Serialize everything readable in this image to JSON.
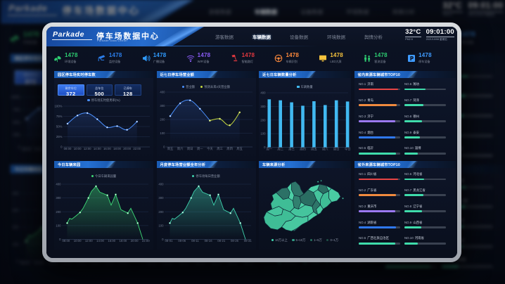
{
  "header": {
    "logo": "Parkade",
    "title": "停车场数据中心",
    "subtitle": "Parkade Data Center",
    "nav": [
      {
        "label": "游客数据",
        "active": false
      },
      {
        "label": "车辆数据",
        "active": true
      },
      {
        "label": "设备数据",
        "active": false
      },
      {
        "label": "环境数据",
        "active": false
      },
      {
        "label": "舆情分析",
        "active": false
      }
    ],
    "temperature": "32°C",
    "temperature_sub": "PM2.5",
    "time": "09:01:00",
    "date": "2021/10/08 星期五"
  },
  "kpis": [
    {
      "icon": "leaf-icon",
      "value": "1478",
      "label": "环境设备",
      "color": "#2ecc71"
    },
    {
      "icon": "camera-icon",
      "value": "1478",
      "label": "监控设备",
      "color": "#2b7de9"
    },
    {
      "icon": "speaker-icon",
      "value": "1478",
      "label": "广播设备",
      "color": "#2f9bff"
    },
    {
      "icon": "wifi-icon",
      "value": "1478",
      "label": "WIFI设备",
      "color": "#8a5cf6"
    },
    {
      "icon": "lamp-icon",
      "value": "1478",
      "label": "智能路灯",
      "color": "#e0383f"
    },
    {
      "icon": "steering-wheel-icon",
      "value": "1478",
      "label": "车辆识别",
      "color": "#ff8a3c"
    },
    {
      "icon": "led-screen-icon",
      "value": "1478",
      "label": "LED大屏",
      "color": "#f5c23d"
    },
    {
      "icon": "people-icon",
      "value": "1478",
      "label": "客流设备",
      "color": "#2ecc71"
    },
    {
      "icon": "parking-icon",
      "value": "1478",
      "label": "停车设备",
      "color": "#3f9bff"
    }
  ],
  "panels": {
    "realtime": {
      "title": "园区停车场实时停车数",
      "stats": [
        {
          "label": "剩余车位",
          "value": "372",
          "hl": true
        },
        {
          "label": "总车位",
          "value": "500",
          "hl": false
        },
        {
          "label": "已停车",
          "value": "128",
          "hl": false
        }
      ]
    },
    "revenue": {
      "title": "近七日停车场营业额"
    },
    "weekly": {
      "title": "近七日车辆数量分析"
    },
    "top_province": {
      "title": "省内来源车辆城市TOP10",
      "items": [
        {
          "rank": "NO.1",
          "name": "济南",
          "pct": 95,
          "color": "#e84545"
        },
        {
          "rank": "NO.2",
          "name": "青岛",
          "pct": 92,
          "color": "#f08a3e"
        },
        {
          "rank": "NO.3",
          "name": "济宁",
          "pct": 88,
          "color": "#9b79f2"
        },
        {
          "rank": "NO.4",
          "name": "烟台",
          "pct": 88,
          "color": "#2f78f0"
        },
        {
          "rank": "NO.5",
          "name": "临沂",
          "pct": 90,
          "color": "#3fdcab"
        },
        {
          "rank": "NO.6",
          "name": "潍坊",
          "pct": 50,
          "color": "#3fdcab"
        },
        {
          "rank": "NO.7",
          "name": "菏泽",
          "pct": 45,
          "color": "#3fdcab"
        },
        {
          "rank": "NO.8",
          "name": "德州",
          "pct": 42,
          "color": "#3fdcab"
        },
        {
          "rank": "NO.9",
          "name": "泰安",
          "pct": 38,
          "color": "#3fdcab"
        },
        {
          "rank": "NO.10",
          "name": "淄博",
          "pct": 32,
          "color": "#3fdcab"
        }
      ]
    },
    "today": {
      "title": "今日车辆来园"
    },
    "monthly": {
      "title": "月度停车场营业额全年分析"
    },
    "map": {
      "title": "车辆来源分析",
      "legend": [
        {
          "label": "10万以上",
          "color": "#3fd6b0"
        },
        {
          "label": "5~10万",
          "color": "#319a85"
        },
        {
          "label": "1~5万",
          "color": "#27705f"
        },
        {
          "label": "0~1万",
          "color": "#1e4f47"
        }
      ]
    },
    "top_outside": {
      "title": "省外来源车辆城市TOP10",
      "items": [
        {
          "rank": "NO.1",
          "name": "四川省",
          "pct": 95,
          "color": "#e84545"
        },
        {
          "rank": "NO.2",
          "name": "广东省",
          "pct": 90,
          "color": "#f08a3e"
        },
        {
          "rank": "NO.3",
          "name": "重庆市",
          "pct": 88,
          "color": "#9b79f2"
        },
        {
          "rank": "NO.4",
          "name": "湖南省",
          "pct": 90,
          "color": "#2f78f0"
        },
        {
          "rank": "NO.5",
          "name": "广西壮族自治区",
          "pct": 88,
          "color": "#3fdcab"
        },
        {
          "rank": "NO.6",
          "name": "河北省",
          "pct": 48,
          "color": "#3fdcab"
        },
        {
          "rank": "NO.7",
          "name": "黑龙江省",
          "pct": 45,
          "color": "#3fdcab"
        },
        {
          "rank": "NO.8",
          "name": "辽宁省",
          "pct": 42,
          "color": "#3fdcab"
        },
        {
          "rank": "NO.9",
          "name": "山西省",
          "pct": 40,
          "color": "#3fdcab"
        },
        {
          "rank": "NO.10",
          "name": "河南省",
          "pct": 33,
          "color": "#3fdcab"
        }
      ]
    }
  },
  "chart_data": [
    {
      "id": "realtime",
      "type": "line",
      "smooth": true,
      "legend": [
        {
          "label": "停车场实时使用率(%)",
          "color": "#4a90ff"
        }
      ],
      "categories": [
        "08:00",
        "10:00",
        "12:00",
        "14:00",
        "16:00",
        "18:00",
        "20:00",
        "22:00"
      ],
      "values": [
        57,
        77,
        83,
        68,
        48,
        51,
        42,
        62
      ],
      "ylim": [
        0,
        100
      ],
      "yticks": [
        "100%",
        "75%",
        "50%",
        "25%",
        "0"
      ],
      "color": "#4a90ff"
    },
    {
      "id": "revenue",
      "type": "line",
      "smooth": true,
      "legend": [
        {
          "label": "营业额",
          "color": "#4a90ff"
        },
        {
          "label": "预测未来3天营业额",
          "color": "#c6d93e"
        }
      ],
      "categories": [
        "周五",
        "周六",
        "周日",
        "周一",
        "今天",
        "周三",
        "周四",
        "周五"
      ],
      "series": [
        {
          "name": "营业额",
          "color": "#4a90ff",
          "values": [
            225,
            318,
            340,
            278,
            192,
            null,
            null,
            null
          ]
        },
        {
          "name": "预测未来3天营业额",
          "color": "#c6d93e",
          "values": [
            null,
            null,
            null,
            null,
            192,
            205,
            158,
            252
          ]
        }
      ],
      "ylim": [
        0,
        400
      ],
      "yticks": [
        "400",
        "300",
        "200",
        "100",
        "0"
      ]
    },
    {
      "id": "weekly",
      "type": "bar",
      "legend": [
        {
          "label": "车辆数量",
          "color": "#41b9f1"
        }
      ],
      "categories": [
        "周一",
        "周二",
        "周三",
        "周四",
        "周五",
        "周六",
        "周日",
        "今日"
      ],
      "values": [
        352,
        345,
        330,
        305,
        338,
        310,
        345,
        336
      ],
      "ylim": [
        0,
        400
      ],
      "yticks": [
        "400",
        "300",
        "200",
        "100",
        "0"
      ],
      "color": "#41b9f1"
    },
    {
      "id": "today",
      "type": "area",
      "legend": [
        {
          "label": "今日车辆来园量",
          "color": "#3ed977"
        }
      ],
      "xticks": [
        "08:00",
        "10:00",
        "12:00",
        "14:00",
        "16:00",
        "18:00",
        "20:00",
        "22:00"
      ],
      "points": [
        [
          18.5,
          118,
          1
        ],
        [
          22,
          152,
          0
        ],
        [
          25,
          146,
          0
        ],
        [
          31,
          170,
          0
        ],
        [
          36.8,
          195,
          1
        ],
        [
          41,
          224,
          0
        ],
        [
          48.7,
          300,
          1
        ],
        [
          53,
          348,
          0
        ],
        [
          59.5,
          385,
          1
        ],
        [
          65,
          342,
          0
        ],
        [
          75.6,
          320,
          1
        ],
        [
          81,
          248,
          0
        ],
        [
          87.5,
          325,
          1
        ],
        [
          95,
          215,
          0
        ],
        [
          104.7,
          190,
          1
        ],
        [
          109,
          225,
          0
        ],
        [
          118.7,
          118,
          1
        ],
        [
          126,
          0,
          0
        ]
      ],
      "ylim": [
        0,
        400
      ],
      "yticks": [
        "400",
        "300",
        "200",
        "100",
        "0"
      ],
      "color": "#3ed977"
    },
    {
      "id": "monthly",
      "type": "area",
      "legend": [
        {
          "label": "停车场每日营业额",
          "color": "#3fd2ae"
        }
      ],
      "xticks": [
        "08-01",
        "08-06",
        "08-11",
        "08-16",
        "08-21",
        "08-26",
        "08-31"
      ],
      "points": [
        [
          18.5,
          118,
          1
        ],
        [
          22,
          152,
          0
        ],
        [
          25,
          146,
          0
        ],
        [
          31,
          170,
          0
        ],
        [
          36.8,
          195,
          1
        ],
        [
          41,
          224,
          0
        ],
        [
          48.7,
          300,
          1
        ],
        [
          53,
          348,
          0
        ],
        [
          59.5,
          385,
          1
        ],
        [
          65,
          342,
          0
        ],
        [
          75.6,
          320,
          1
        ],
        [
          81,
          248,
          0
        ],
        [
          87.5,
          325,
          1
        ],
        [
          95,
          215,
          0
        ],
        [
          104.7,
          190,
          1
        ],
        [
          109,
          225,
          0
        ],
        [
          118.7,
          118,
          1
        ],
        [
          126,
          0,
          0
        ]
      ],
      "ylim": [
        0,
        400
      ],
      "yticks": [
        "400",
        "300",
        "200",
        "100",
        "0"
      ],
      "color": "#3fd2ae"
    }
  ]
}
